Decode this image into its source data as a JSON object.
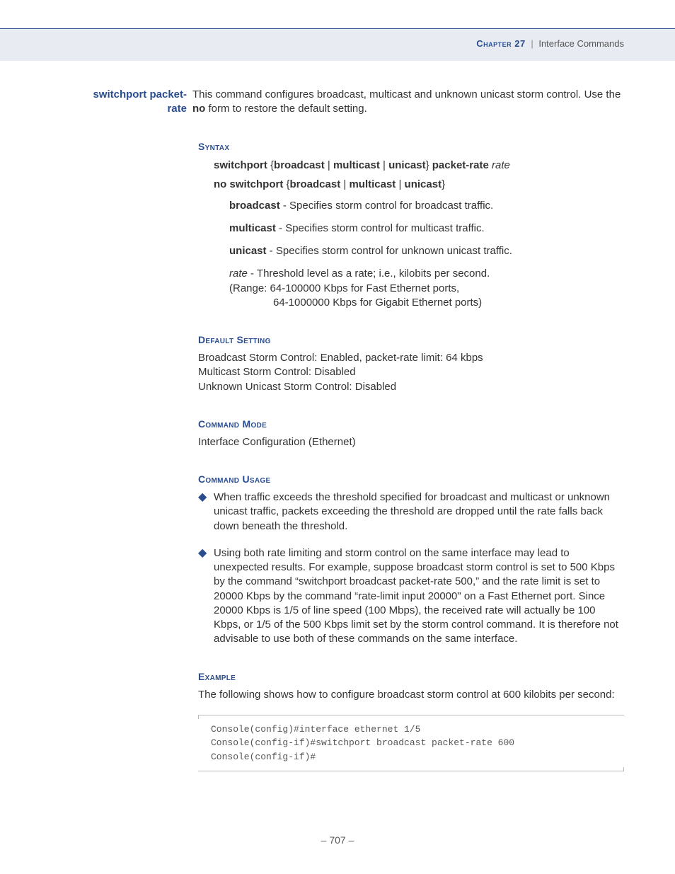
{
  "colors": {
    "accent": "#2a4d8f",
    "header_bg": "#e8ecf2",
    "text": "#333333",
    "muted": "#555555",
    "border": "#bbbbbb"
  },
  "header": {
    "chapter": "Chapter 27",
    "section": "Interface Commands"
  },
  "side_label_line1": "switchport packet-",
  "side_label_line2": "rate",
  "intro_part1": "This command configures broadcast, multicast and unknown unicast storm control. Use the ",
  "intro_bold": "no",
  "intro_part2": " form to restore the default setting.",
  "syntax": {
    "heading": "Syntax",
    "line1_parts": {
      "p1": "switchport",
      "brace_open": " {",
      "p2": "broadcast",
      "pipe": " | ",
      "p3": "multicast",
      "p4": "unicast",
      "brace_close": "} ",
      "p5": "packet-rate",
      "rate": " rate"
    },
    "line2_parts": {
      "p1": "no switchport",
      "brace_open": " {",
      "p2": "broadcast",
      "pipe": " | ",
      "p3": "multicast",
      "p4": "unicast",
      "brace_close": "}"
    },
    "params": [
      {
        "name": "broadcast",
        "desc": " - Specifies storm control for broadcast traffic."
      },
      {
        "name": "multicast",
        "desc": " - Specifies storm control for multicast traffic."
      },
      {
        "name": "unicast",
        "desc": " - Specifies storm control for unknown unicast traffic."
      }
    ],
    "rate_param": {
      "name": "rate",
      "desc_l1": " - Threshold level as a rate; i.e., kilobits per second.",
      "desc_l2": "(Range: 64-100000 Kbps for Fast Ethernet ports,",
      "desc_l3": "64-1000000 Kbps for Gigabit Ethernet ports)"
    }
  },
  "default_setting": {
    "heading": "Default Setting",
    "l1": "Broadcast Storm Control: Enabled, packet-rate limit: 64 kbps",
    "l2": "Multicast Storm Control: Disabled",
    "l3": "Unknown Unicast Storm Control: Disabled"
  },
  "command_mode": {
    "heading": "Command Mode",
    "text": "Interface Configuration (Ethernet)"
  },
  "command_usage": {
    "heading": "Command Usage",
    "bullets": [
      "When traffic exceeds the threshold specified for broadcast and multicast or unknown unicast traffic, packets exceeding the threshold are dropped until the rate falls back down beneath the threshold.",
      "Using both rate limiting and storm control on the same interface may lead to unexpected results. For example, suppose broadcast storm control is set to 500 Kbps by the command “switchport broadcast packet-rate 500,” and the rate limit is set to 20000 Kbps by the command “rate-limit input 20000\" on a Fast Ethernet port. Since 20000 Kbps is 1/5 of line speed (100 Mbps), the received rate will actually be 100 Kbps, or 1/5 of the 500 Kbps limit set by the storm control command. It is therefore not advisable to use both of these commands on the same interface."
    ]
  },
  "example": {
    "heading": "Example",
    "intro": "The following shows how to configure broadcast storm control at 600 kilobits per second:",
    "code": [
      "Console(config)#interface ethernet 1/5",
      "Console(config-if)#switchport broadcast packet-rate 600",
      "Console(config-if)#"
    ]
  },
  "footer": {
    "page": "–  707  –"
  }
}
